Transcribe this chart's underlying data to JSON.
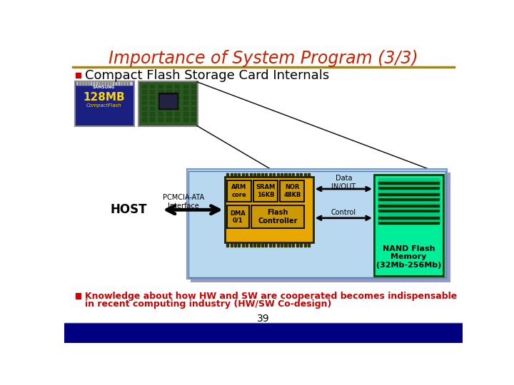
{
  "title": "Importance of System Program (3/3)",
  "title_color": "#CC2200",
  "title_fontsize": 17,
  "background_color": "#FFFFFF",
  "bullet1": "Compact Flash Storage Card Internals",
  "bullet1_color": "#000000",
  "bullet_marker_color": "#CC0000",
  "bottom_text1": "Knowledge about how HW and SW are cooperated becomes indispensable",
  "bottom_text2": "in recent computing industry (HW/SW Co-design)",
  "bottom_text_color": "#CC0000",
  "page_number": "39",
  "divider_color_top": "#AA8800",
  "host_label": "HOST",
  "pcmcia_label": "PCMCIA-ATA\nInterface",
  "arm_label": "ARM\ncore",
  "sram_label": "SRAM\n16KB",
  "nor_label": "NOR\n48KB",
  "dma_label": "DMA\n0/1",
  "flash_ctrl_label": "Flash\nController",
  "data_inout_label": "Data\nIN/OUT",
  "control_label": "Control",
  "nand_label": "NAND Flash\nMemory\n(32Mb-256Mb)",
  "light_blue_bg": "#B8D8F0",
  "light_blue_bg2": "#C8D8F8",
  "yellow_box": "#E8A800",
  "green_box": "#00EE99",
  "footer_bar_color": "#000080",
  "nand_chip_dark": "#003300",
  "nand_chip_light": "#00CC88"
}
